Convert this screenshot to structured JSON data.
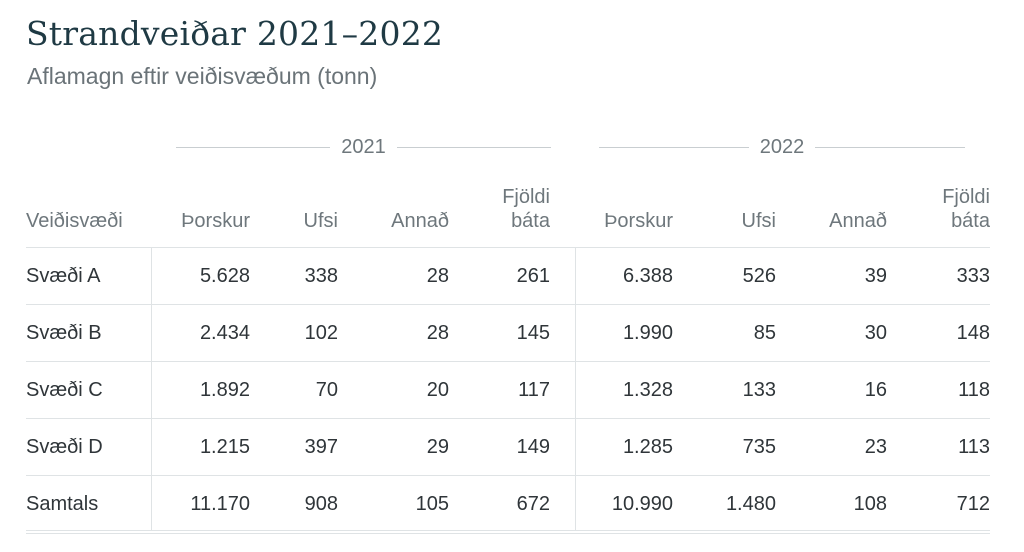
{
  "title": "Strandveiðar 2021–2022",
  "subtitle": "Aflamagn eftir veiðisvæðum (tonn)",
  "groups": {
    "y2021": "2021",
    "y2022": "2022"
  },
  "columns": {
    "area": "Veiðisvæði",
    "c1": "Þorskur",
    "c2": "Ufsi",
    "c3": "Annað",
    "c4_line1": "Fjöldi",
    "c4_line2": "báta"
  },
  "rows": [
    {
      "name": "Svæði A",
      "v2021": [
        "5.628",
        "338",
        "28",
        "261"
      ],
      "v2022": [
        "6.388",
        "526",
        "39",
        "333"
      ]
    },
    {
      "name": "Svæði B",
      "v2021": [
        "2.434",
        "102",
        "28",
        "145"
      ],
      "v2022": [
        "1.990",
        "85",
        "30",
        "148"
      ]
    },
    {
      "name": "Svæði C",
      "v2021": [
        "1.892",
        "70",
        "20",
        "117"
      ],
      "v2022": [
        "1.328",
        "133",
        "16",
        "118"
      ]
    },
    {
      "name": "Svæði D",
      "v2021": [
        "1.215",
        "397",
        "29",
        "149"
      ],
      "v2022": [
        "1.285",
        "735",
        "23",
        "113"
      ]
    },
    {
      "name": "Samtals",
      "v2021": [
        "11.170",
        "908",
        "105",
        "672"
      ],
      "v2022": [
        "10.990",
        "1.480",
        "108",
        "712"
      ]
    }
  ]
}
